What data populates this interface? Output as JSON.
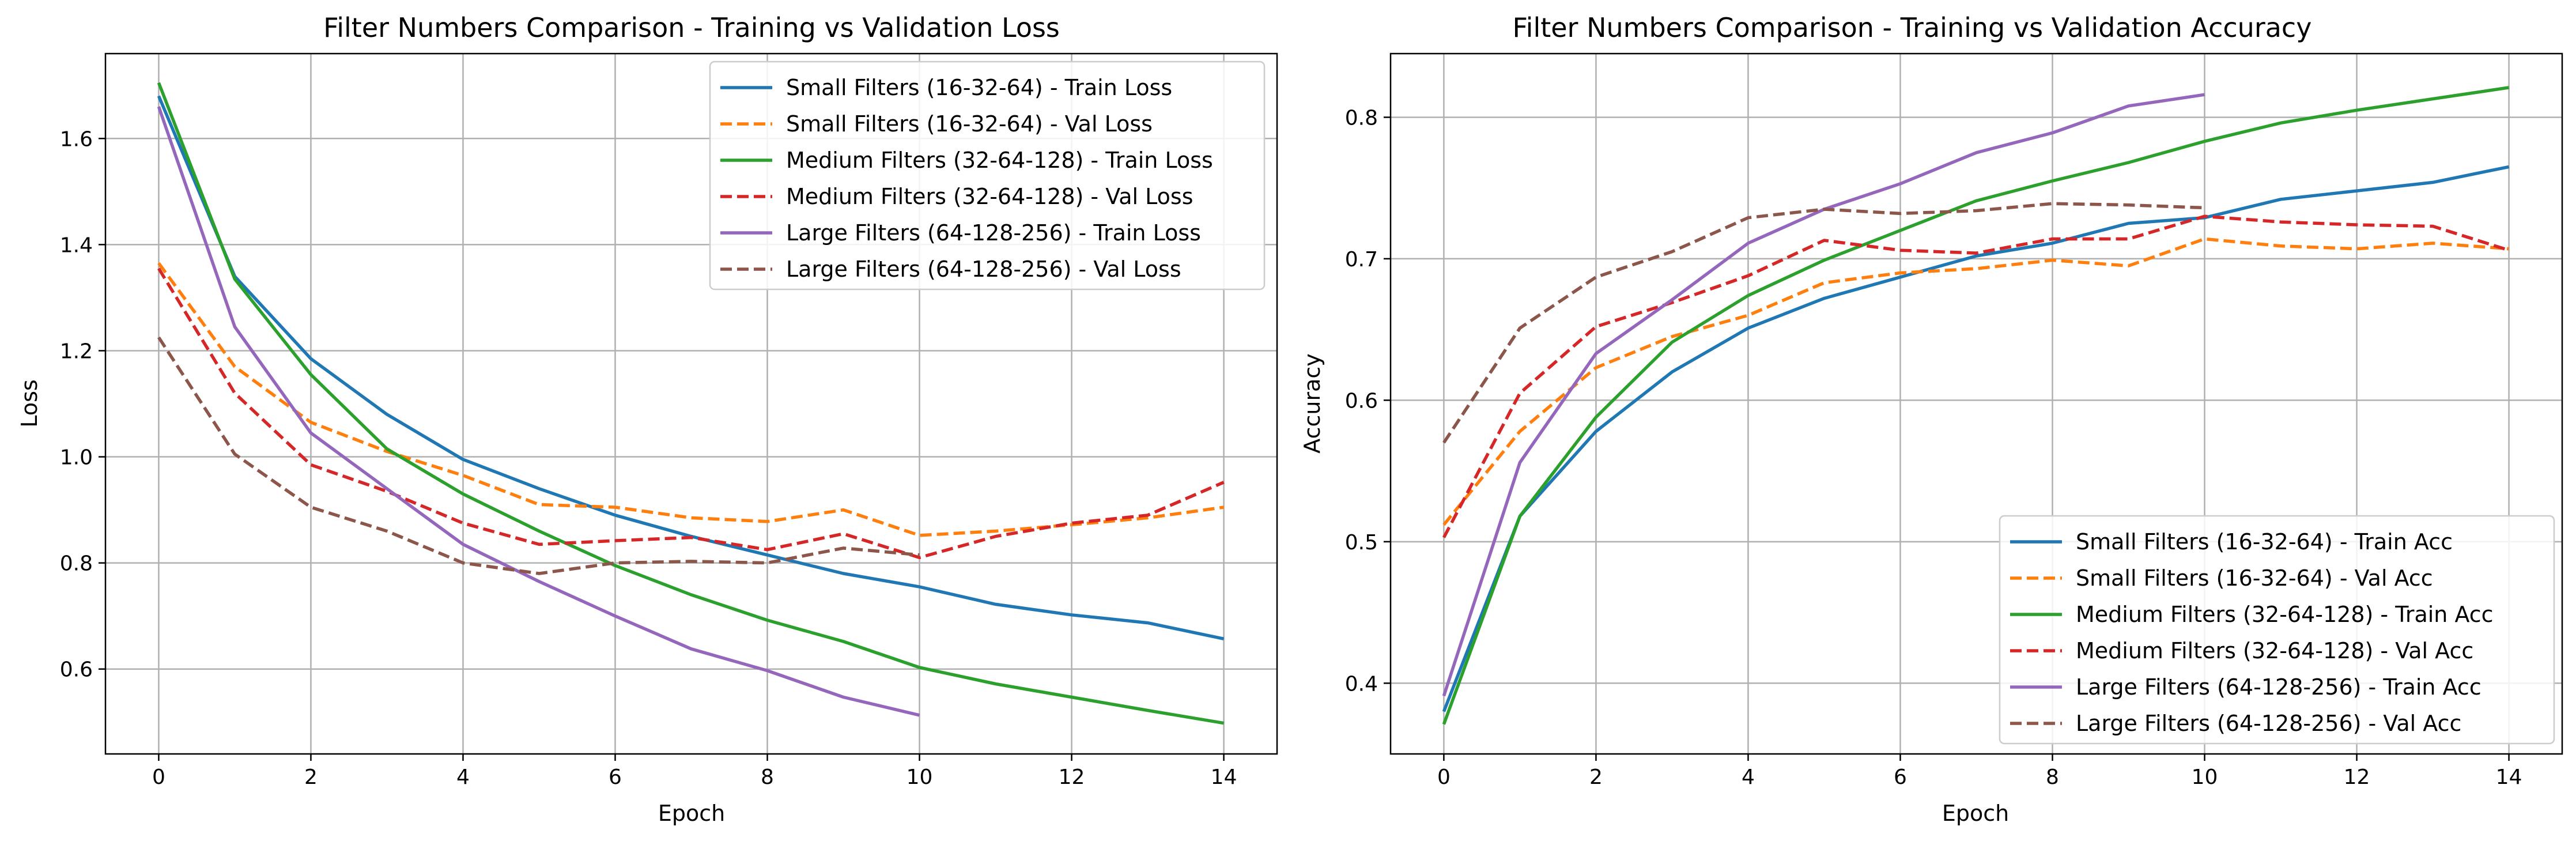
{
  "chart_data": [
    {
      "type": "line",
      "title": "Filter Numbers Comparison - Training vs Validation Loss",
      "xlabel": "Epoch",
      "ylabel": "Loss",
      "xlim": [
        -0.7,
        14.7
      ],
      "ylim": [
        0.44,
        1.76
      ],
      "xticks": [
        0,
        2,
        4,
        6,
        8,
        10,
        12,
        14
      ],
      "yticks": [
        0.6,
        0.8,
        1.0,
        1.2,
        1.4,
        1.6
      ],
      "ytick_labels": [
        "0.6",
        "0.8",
        "1.0",
        "1.2",
        "1.4",
        "1.6"
      ],
      "grid": true,
      "legend_position": "top-right",
      "series": [
        {
          "name": "Small Filters (16-32-64) - Train Loss",
          "color": "#1f77b4",
          "style": "solid",
          "x": [
            0,
            1,
            2,
            3,
            4,
            5,
            6,
            7,
            8,
            9,
            10,
            11,
            12,
            13,
            14
          ],
          "values": [
            1.68,
            1.34,
            1.185,
            1.08,
            0.995,
            0.94,
            0.89,
            0.85,
            0.815,
            0.78,
            0.755,
            0.722,
            0.702,
            0.687,
            0.657
          ]
        },
        {
          "name": "Small Filters (16-32-64) - Val Loss",
          "color": "#ff7f0e",
          "style": "dashed",
          "x": [
            0,
            1,
            2,
            3,
            4,
            5,
            6,
            7,
            8,
            9,
            10,
            11,
            12,
            13,
            14
          ],
          "values": [
            1.365,
            1.17,
            1.065,
            1.01,
            0.965,
            0.91,
            0.905,
            0.885,
            0.878,
            0.9,
            0.852,
            0.86,
            0.872,
            0.885,
            0.905
          ]
        },
        {
          "name": "Medium Filters (32-64-128) - Train Loss",
          "color": "#2ca02c",
          "style": "solid",
          "x": [
            0,
            1,
            2,
            3,
            4,
            5,
            6,
            7,
            8,
            9,
            10,
            11,
            12,
            13,
            14
          ],
          "values": [
            1.705,
            1.335,
            1.155,
            1.015,
            0.93,
            0.86,
            0.795,
            0.74,
            0.692,
            0.652,
            0.603,
            0.572,
            0.547,
            0.522,
            0.498
          ]
        },
        {
          "name": "Medium Filters (32-64-128) - Val Loss",
          "color": "#d62728",
          "style": "dashed",
          "x": [
            0,
            1,
            2,
            3,
            4,
            5,
            6,
            7,
            8,
            9,
            10,
            11,
            12,
            13,
            14
          ],
          "values": [
            1.355,
            1.12,
            0.985,
            0.935,
            0.875,
            0.835,
            0.842,
            0.848,
            0.825,
            0.855,
            0.81,
            0.85,
            0.875,
            0.89,
            0.952
          ]
        },
        {
          "name": "Large Filters (64-128-256) - Train Loss",
          "color": "#9467bd",
          "style": "solid",
          "x": [
            0,
            1,
            2,
            3,
            4,
            5,
            6,
            7,
            8,
            9,
            10
          ],
          "values": [
            1.66,
            1.245,
            1.045,
            0.94,
            0.835,
            0.765,
            0.7,
            0.638,
            0.597,
            0.547,
            0.513
          ]
        },
        {
          "name": "Large Filters (64-128-256) - Val Loss",
          "color": "#8c564b",
          "style": "dashed",
          "x": [
            0,
            1,
            2,
            3,
            4,
            5,
            6,
            7,
            8,
            9,
            10
          ],
          "values": [
            1.225,
            1.005,
            0.905,
            0.86,
            0.8,
            0.78,
            0.8,
            0.803,
            0.8,
            0.828,
            0.815
          ]
        }
      ]
    },
    {
      "type": "line",
      "title": "Filter Numbers Comparison - Training vs Validation Accuracy",
      "xlabel": "Epoch",
      "ylabel": "Accuracy",
      "xlim": [
        -0.7,
        14.7
      ],
      "ylim": [
        0.35,
        0.845
      ],
      "xticks": [
        0,
        2,
        4,
        6,
        8,
        10,
        12,
        14
      ],
      "yticks": [
        0.4,
        0.5,
        0.6,
        0.7,
        0.8
      ],
      "ytick_labels": [
        "0.4",
        "0.5",
        "0.6",
        "0.7",
        "0.8"
      ],
      "grid": true,
      "legend_position": "bottom-right",
      "series": [
        {
          "name": "Small Filters (16-32-64) - Train Acc",
          "color": "#1f77b4",
          "style": "solid",
          "x": [
            0,
            1,
            2,
            3,
            4,
            5,
            6,
            7,
            8,
            9,
            10,
            11,
            12,
            13,
            14
          ],
          "values": [
            0.38,
            0.518,
            0.578,
            0.62,
            0.651,
            0.672,
            0.687,
            0.702,
            0.711,
            0.725,
            0.729,
            0.742,
            0.748,
            0.754,
            0.765
          ]
        },
        {
          "name": "Small Filters (16-32-64) - Val Acc",
          "color": "#ff7f0e",
          "style": "dashed",
          "x": [
            0,
            1,
            2,
            3,
            4,
            5,
            6,
            7,
            8,
            9,
            10,
            11,
            12,
            13,
            14
          ],
          "values": [
            0.512,
            0.578,
            0.623,
            0.645,
            0.66,
            0.683,
            0.69,
            0.693,
            0.699,
            0.695,
            0.714,
            0.709,
            0.707,
            0.711,
            0.707
          ]
        },
        {
          "name": "Medium Filters (32-64-128) - Train Acc",
          "color": "#2ca02c",
          "style": "solid",
          "x": [
            0,
            1,
            2,
            3,
            4,
            5,
            6,
            7,
            8,
            9,
            10,
            11,
            12,
            13,
            14
          ],
          "values": [
            0.371,
            0.518,
            0.588,
            0.641,
            0.674,
            0.699,
            0.72,
            0.741,
            0.755,
            0.768,
            0.783,
            0.796,
            0.805,
            0.813,
            0.821
          ]
        },
        {
          "name": "Medium Filters (32-64-128) - Val Acc",
          "color": "#d62728",
          "style": "dashed",
          "x": [
            0,
            1,
            2,
            3,
            4,
            5,
            6,
            7,
            8,
            9,
            10,
            11,
            12,
            13,
            14
          ],
          "values": [
            0.503,
            0.605,
            0.652,
            0.669,
            0.688,
            0.713,
            0.706,
            0.704,
            0.714,
            0.714,
            0.73,
            0.726,
            0.724,
            0.723,
            0.706
          ]
        },
        {
          "name": "Large Filters (64-128-256) - Train Acc",
          "color": "#9467bd",
          "style": "solid",
          "x": [
            0,
            1,
            2,
            3,
            4,
            5,
            6,
            7,
            8,
            9,
            10
          ],
          "values": [
            0.391,
            0.556,
            0.633,
            0.671,
            0.711,
            0.735,
            0.753,
            0.775,
            0.789,
            0.808,
            0.816
          ]
        },
        {
          "name": "Large Filters (64-128-256) - Val Acc",
          "color": "#8c564b",
          "style": "dashed",
          "x": [
            0,
            1,
            2,
            3,
            4,
            5,
            6,
            7,
            8,
            9,
            10
          ],
          "values": [
            0.57,
            0.651,
            0.687,
            0.705,
            0.729,
            0.735,
            0.732,
            0.734,
            0.739,
            0.738,
            0.736
          ]
        }
      ]
    }
  ]
}
